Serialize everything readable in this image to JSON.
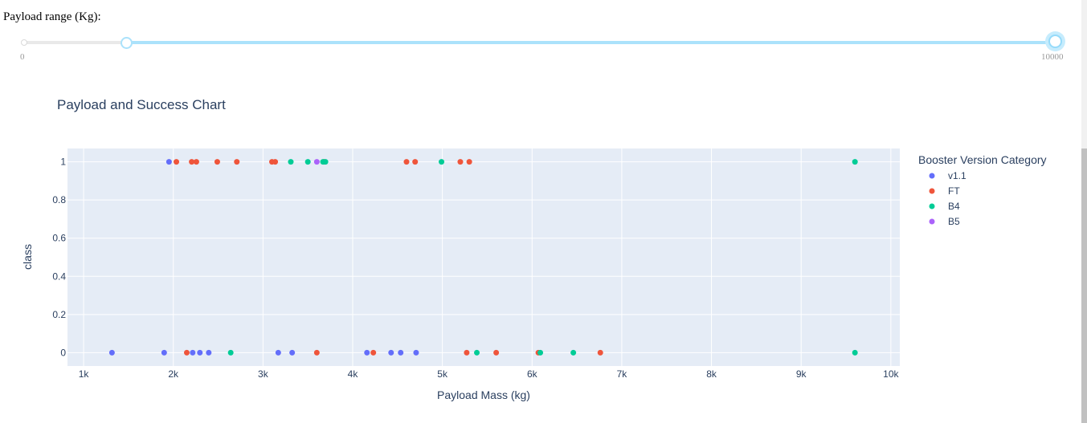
{
  "slider": {
    "label": "Payload range (Kg):",
    "min_label": "0",
    "max_label": "10000",
    "min": 0,
    "max": 10000,
    "value": [
      1000,
      10000
    ]
  },
  "chart_data": {
    "type": "scatter",
    "title": "Payload and Success Chart",
    "xlabel": "Payload Mass (kg)",
    "ylabel": "class",
    "xlim": [
      820,
      10100
    ],
    "ylim": [
      -0.07,
      1.07
    ],
    "x_ticks": [
      1000,
      2000,
      3000,
      4000,
      5000,
      6000,
      7000,
      8000,
      9000,
      10000
    ],
    "x_tick_labels": [
      "1k",
      "2k",
      "3k",
      "4k",
      "5k",
      "6k",
      "7k",
      "8k",
      "9k",
      "10k"
    ],
    "y_ticks": [
      0,
      0.2,
      0.4,
      0.6,
      0.8,
      1
    ],
    "y_tick_labels": [
      "0",
      "0.2",
      "0.4",
      "0.6",
      "0.8",
      "1"
    ],
    "grid": true,
    "legend_title": "Booster Version Category",
    "legend_position": "right",
    "series": [
      {
        "name": "v1.1",
        "color": "#636efa",
        "points": [
          [
            1952,
            1
          ],
          [
            1316,
            0
          ],
          [
            1898,
            0
          ],
          [
            2216,
            0
          ],
          [
            2296,
            0
          ],
          [
            2395,
            0
          ],
          [
            3170,
            0
          ],
          [
            3325,
            0
          ],
          [
            4159,
            0
          ],
          [
            4428,
            0
          ],
          [
            4535,
            0
          ],
          [
            4707,
            0
          ]
        ]
      },
      {
        "name": "FT",
        "color": "#ef553b",
        "points": [
          [
            2034,
            1
          ],
          [
            2205,
            1
          ],
          [
            2257,
            1
          ],
          [
            2490,
            1
          ],
          [
            2708,
            1
          ],
          [
            3100,
            1
          ],
          [
            3136,
            1
          ],
          [
            3681,
            1
          ],
          [
            4600,
            1
          ],
          [
            4696,
            1
          ],
          [
            5200,
            1
          ],
          [
            5300,
            1
          ],
          [
            2150,
            0
          ],
          [
            3600,
            0
          ],
          [
            4230,
            0
          ],
          [
            5271,
            0
          ],
          [
            5600,
            0
          ],
          [
            6070,
            0
          ],
          [
            6761,
            0
          ]
        ]
      },
      {
        "name": "B4",
        "color": "#00cc96",
        "points": [
          [
            3310,
            1
          ],
          [
            3500,
            1
          ],
          [
            3669,
            1
          ],
          [
            3696,
            1
          ],
          [
            4990,
            1
          ],
          [
            9600,
            1
          ],
          [
            2640,
            0
          ],
          [
            5384,
            0
          ],
          [
            6092,
            0
          ],
          [
            6460,
            0
          ],
          [
            9600,
            0
          ]
        ]
      },
      {
        "name": "B5",
        "color": "#ab63fa",
        "points": [
          [
            3600,
            1
          ]
        ]
      }
    ]
  }
}
